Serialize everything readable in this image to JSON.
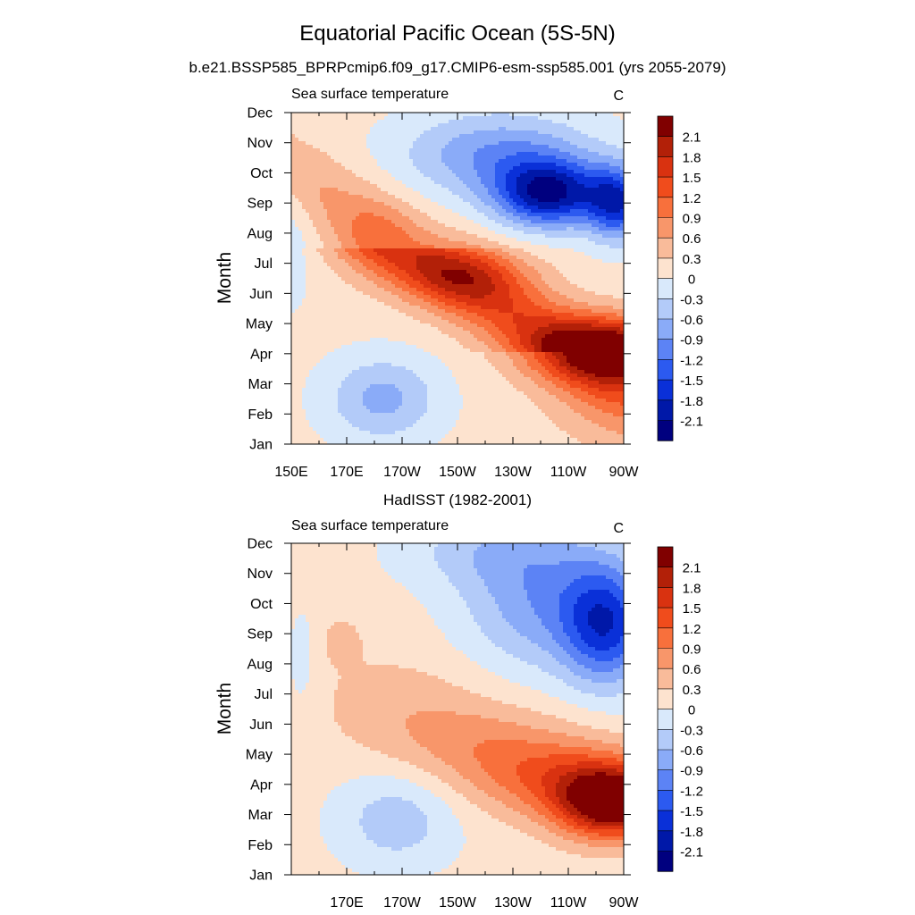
{
  "figure": {
    "title": "Equatorial Pacific Ocean (5S-5N)",
    "subtitle": "b.e21.BSSP585_BPRPcmip6.f09_g17.CMIP6-esm-ssp585.001 (yrs 2055-2079)"
  },
  "colorbar": {
    "labels": [
      "2.1",
      "1.8",
      "1.5",
      "1.2",
      "0.9",
      "0.6",
      "0.3",
      "0",
      "-0.3",
      "-0.6",
      "-0.9",
      "-1.2",
      "-1.5",
      "-1.8",
      "-2.1"
    ],
    "colors": [
      "#800000",
      "#b22008",
      "#d93210",
      "#f04c1c",
      "#f8703c",
      "#f8966a",
      "#f9bb9a",
      "#fde3cf",
      "#d9e9fb",
      "#b3cbf9",
      "#8aabf8",
      "#5c83f5",
      "#2c5af0",
      "#0a30d8",
      "#0018a8",
      "#00007f"
    ]
  },
  "chart_data": [
    {
      "type": "heatmap",
      "panel_title": "",
      "left_label": "Sea surface temperature",
      "right_label": "C",
      "ylabel": "Month",
      "xlabel": "",
      "x_ticks": [
        "150E",
        "170E",
        "170W",
        "150W",
        "130W",
        "110W",
        "90W"
      ],
      "y_ticks": [
        "Jan",
        "Feb",
        "Mar",
        "Apr",
        "May",
        "Jun",
        "Jul",
        "Aug",
        "Sep",
        "Oct",
        "Nov",
        "Dec"
      ],
      "xlim_lon_east": [
        150,
        270
      ],
      "ylim_month": [
        1,
        12
      ],
      "contour_levels": [
        -2.1,
        -1.8,
        -1.5,
        -1.2,
        -0.9,
        -0.6,
        -0.3,
        0,
        0.3,
        0.6,
        0.9,
        1.2,
        1.5,
        1.8,
        2.1
      ],
      "units": "C",
      "features": [
        {
          "kind": "max",
          "lon": 264,
          "month": 4.0,
          "value": 2.2
        },
        {
          "kind": "min",
          "lon": 243,
          "month": 9.3,
          "value": -2.0
        },
        {
          "kind": "min",
          "lon": 267,
          "month": 9.0,
          "value": -1.7
        }
      ]
    },
    {
      "type": "heatmap",
      "panel_title": "HadISST (1982-2001)",
      "left_label": "Sea surface temperature",
      "right_label": "C",
      "ylabel": "Month",
      "xlabel": "",
      "x_ticks": [
        "170E",
        "170W",
        "150W",
        "130W",
        "110W",
        "90W"
      ],
      "y_ticks": [
        "Jan",
        "Feb",
        "Mar",
        "Apr",
        "May",
        "Jun",
        "Jul",
        "Aug",
        "Sep",
        "Oct",
        "Nov",
        "Dec"
      ],
      "xlim_lon_east": [
        150,
        270
      ],
      "ylim_month": [
        1,
        12
      ],
      "contour_levels": [
        -2.1,
        -1.8,
        -1.5,
        -1.2,
        -0.9,
        -0.6,
        -0.3,
        0,
        0.3,
        0.6,
        0.9,
        1.2,
        1.5,
        1.8,
        2.1
      ],
      "units": "C",
      "features": [
        {
          "kind": "max",
          "lon": 266,
          "month": 3.4,
          "value": 2.6
        },
        {
          "kind": "min",
          "lon": 264,
          "month": 9.3,
          "value": -1.6
        }
      ]
    }
  ]
}
